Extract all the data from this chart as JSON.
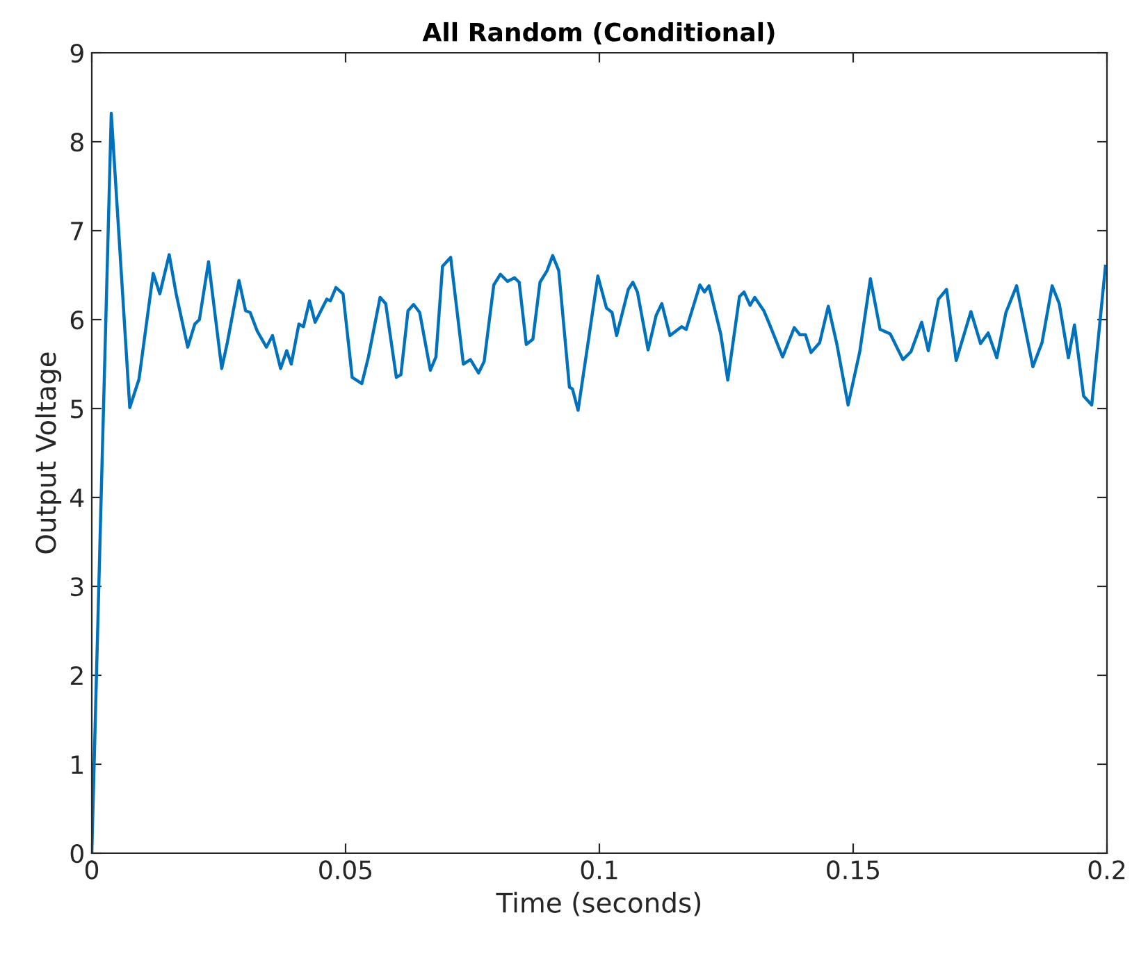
{
  "chart_data": {
    "type": "line",
    "title": "All Random (Conditional)",
    "xlabel": "Time (seconds)",
    "ylabel": "Output Voltage",
    "xlim": [
      0,
      0.2
    ],
    "ylim": [
      0,
      9
    ],
    "xticks": [
      0,
      0.05,
      0.1,
      0.15,
      0.2
    ],
    "yticks": [
      0,
      1,
      2,
      3,
      4,
      5,
      6,
      7,
      8,
      9
    ],
    "grid": false,
    "legend": false,
    "marker": "none",
    "line_style": "solid",
    "series": [
      {
        "color": "#0072bd",
        "x": [
          0,
          0.00384,
          0.00748,
          0.0093,
          0.0121,
          0.0134,
          0.01525,
          0.01662,
          0.0189,
          0.0203,
          0.0212,
          0.023,
          0.0256,
          0.0267,
          0.029,
          0.0303,
          0.0312,
          0.0326,
          0.0344,
          0.0356,
          0.0372,
          0.0384,
          0.0393,
          0.0408,
          0.0417,
          0.0429,
          0.044,
          0.0463,
          0.047,
          0.0481,
          0.0495,
          0.0513,
          0.0532,
          0.0545,
          0.0568,
          0.0579,
          0.06,
          0.0609,
          0.0623,
          0.0634,
          0.0646,
          0.0667,
          0.0678,
          0.0691,
          0.0707,
          0.0732,
          0.0746,
          0.0762,
          0.0773,
          0.0792,
          0.0805,
          0.0819,
          0.0833,
          0.0842,
          0.0856,
          0.0869,
          0.0883,
          0.0897,
          0.0908,
          0.092,
          0.0941,
          0.0947,
          0.0958,
          0.0979,
          0.0997,
          0.1014,
          0.1025,
          0.1034,
          0.1057,
          0.1066,
          0.1075,
          0.1096,
          0.1112,
          0.1123,
          0.1139,
          0.1162,
          0.1171,
          0.1198,
          0.1207,
          0.1216,
          0.1239,
          0.1253,
          0.1276,
          0.1285,
          0.1297,
          0.1306,
          0.1324,
          0.1335,
          0.1361,
          0.1384,
          0.1395,
          0.1406,
          0.1417,
          0.1434,
          0.1451,
          0.1468,
          0.149,
          0.1513,
          0.1534,
          0.1553,
          0.1573,
          0.1598,
          0.1614,
          0.1635,
          0.1648,
          0.1668,
          0.1684,
          0.1703,
          0.1732,
          0.1751,
          0.1766,
          0.1783,
          0.1801,
          0.1822,
          0.1854,
          0.1872,
          0.1892,
          0.1906,
          0.1924,
          0.1936,
          0.1954,
          0.197,
          0.1997
        ],
        "values": [
          0,
          8.32,
          5.01,
          5.33,
          6.52,
          6.29,
          6.73,
          6.29,
          5.69,
          5.95,
          6.0,
          6.65,
          5.45,
          5.74,
          6.44,
          6.1,
          6.08,
          5.87,
          5.69,
          5.82,
          5.45,
          5.65,
          5.5,
          5.95,
          5.92,
          6.21,
          5.97,
          6.23,
          6.21,
          6.36,
          6.29,
          5.35,
          5.28,
          5.58,
          6.25,
          6.18,
          5.35,
          5.38,
          6.1,
          6.17,
          6.08,
          5.43,
          5.58,
          6.6,
          6.7,
          5.5,
          5.55,
          5.4,
          5.53,
          6.39,
          6.51,
          6.43,
          6.47,
          6.42,
          5.72,
          5.78,
          6.42,
          6.55,
          6.72,
          6.55,
          5.24,
          5.22,
          4.98,
          5.79,
          6.49,
          6.13,
          6.08,
          5.82,
          6.34,
          6.42,
          6.31,
          5.66,
          6.05,
          6.18,
          5.82,
          5.92,
          5.89,
          6.39,
          6.31,
          6.38,
          5.84,
          5.32,
          6.26,
          6.31,
          6.16,
          6.25,
          6.1,
          5.95,
          5.58,
          5.91,
          5.83,
          5.83,
          5.63,
          5.74,
          6.15,
          5.72,
          5.04,
          5.64,
          6.46,
          5.89,
          5.84,
          5.55,
          5.64,
          5.97,
          5.65,
          6.23,
          6.34,
          5.54,
          6.09,
          5.73,
          5.85,
          5.57,
          6.08,
          6.38,
          5.47,
          5.74,
          6.38,
          6.18,
          5.57,
          5.94,
          5.14,
          5.04,
          6.6
        ]
      }
    ]
  }
}
